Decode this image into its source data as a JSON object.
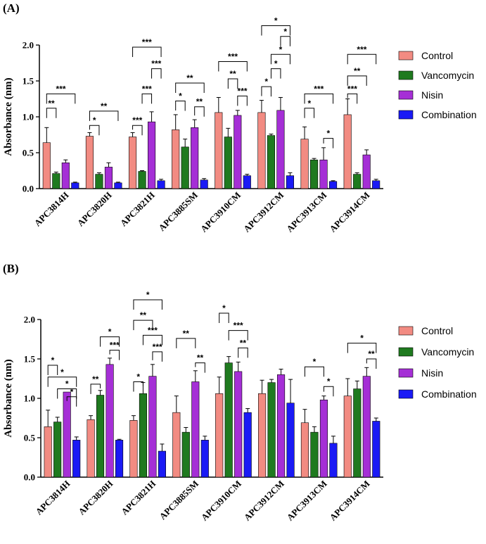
{
  "panels_text": {
    "a": "(A)",
    "b": "(B)"
  },
  "colors": {
    "Control": "#f28b82",
    "Vancomycin": "#1f7a1f",
    "Nisin": "#a52fd6",
    "Combination": "#1a1af5"
  },
  "chart_data": [
    {
      "type": "bar",
      "panel": "(A)",
      "categories": [
        "APC3814H",
        "APC3820H",
        "APC3821H",
        "APC3885SM",
        "APC3910CM",
        "APC3912CM",
        "APC3913CM",
        "APC3914CM"
      ],
      "ylabel": "Absorbance (nm)",
      "ylim": [
        0,
        2.0
      ],
      "yticks": [
        "0.0",
        "0.5",
        "1.0",
        "1.5",
        "2.0"
      ],
      "legend_placement": "right",
      "series": [
        {
          "name": "Control",
          "values": [
            0.64,
            0.73,
            0.72,
            0.82,
            1.06,
            1.06,
            0.69,
            1.03
          ],
          "errors": [
            0.21,
            0.05,
            0.06,
            0.21,
            0.21,
            0.17,
            0.17,
            0.22
          ]
        },
        {
          "name": "Vancomycin",
          "values": [
            0.21,
            0.2,
            0.24,
            0.58,
            0.72,
            0.74,
            0.4,
            0.2
          ],
          "errors": [
            0.02,
            0.02,
            0.01,
            0.11,
            0.12,
            0.02,
            0.02,
            0.02
          ]
        },
        {
          "name": "Nisin",
          "values": [
            0.36,
            0.3,
            0.93,
            0.85,
            1.02,
            1.09,
            0.4,
            0.47
          ],
          "errors": [
            0.04,
            0.06,
            0.14,
            0.11,
            0.07,
            0.18,
            0.17,
            0.07
          ]
        },
        {
          "name": "Combination",
          "values": [
            0.08,
            0.08,
            0.11,
            0.12,
            0.18,
            0.18,
            0.1,
            0.11
          ],
          "errors": [
            0.01,
            0.01,
            0.02,
            0.02,
            0.02,
            0.04,
            0.01,
            0.02
          ]
        }
      ],
      "significance": [
        {
          "group": 0,
          "from": 0,
          "to": 1,
          "top": 1.12,
          "label": "**"
        },
        {
          "group": 0,
          "from": 0,
          "to": 3,
          "top": 1.32,
          "label": "***"
        },
        {
          "group": 1,
          "from": 0,
          "to": 1,
          "top": 0.88,
          "label": "*"
        },
        {
          "group": 1,
          "from": 0,
          "to": 3,
          "top": 1.08,
          "label": "**"
        },
        {
          "group": 2,
          "from": 0,
          "to": 1,
          "top": 0.88,
          "label": "***"
        },
        {
          "group": 2,
          "from": 0,
          "to": 3,
          "top": 1.97,
          "label": "***"
        },
        {
          "group": 2,
          "from": 1,
          "to": 2,
          "top": 1.32,
          "label": "***"
        },
        {
          "group": 2,
          "from": 2,
          "to": 3,
          "top": 1.67,
          "label": "***"
        },
        {
          "group": 3,
          "from": 0,
          "to": 1,
          "top": 1.22,
          "label": "*"
        },
        {
          "group": 3,
          "from": 0,
          "to": 3,
          "top": 1.47,
          "label": "**"
        },
        {
          "group": 3,
          "from": 2,
          "to": 3,
          "top": 1.14,
          "label": "**"
        },
        {
          "group": 4,
          "from": 0,
          "to": 3,
          "top": 1.77,
          "label": "***"
        },
        {
          "group": 4,
          "from": 1,
          "to": 2,
          "top": 1.53,
          "label": "**"
        },
        {
          "group": 4,
          "from": 2,
          "to": 3,
          "top": 1.29,
          "label": "***"
        },
        {
          "group": 5,
          "from": 0,
          "to": 1,
          "top": 1.42,
          "label": "*"
        },
        {
          "group": 5,
          "from": 0,
          "to": 3,
          "top": 2.27,
          "label": "*"
        },
        {
          "group": 5,
          "from": 1,
          "to": 2,
          "top": 1.67,
          "label": "*"
        },
        {
          "group": 5,
          "from": 1,
          "to": 3,
          "top": 1.87,
          "label": "*"
        },
        {
          "group": 5,
          "from": 2,
          "to": 3,
          "top": 2.12,
          "label": "*"
        },
        {
          "group": 6,
          "from": 0,
          "to": 1,
          "top": 1.12,
          "label": "*"
        },
        {
          "group": 6,
          "from": 0,
          "to": 3,
          "top": 1.32,
          "label": "***"
        },
        {
          "group": 6,
          "from": 2,
          "to": 3,
          "top": 0.7,
          "label": "*"
        },
        {
          "group": 7,
          "from": 0,
          "to": 1,
          "top": 1.32,
          "label": "***"
        },
        {
          "group": 7,
          "from": 0,
          "to": 2,
          "top": 1.57,
          "label": "**"
        },
        {
          "group": 7,
          "from": 0,
          "to": 3,
          "top": 1.87,
          "label": "***"
        }
      ]
    },
    {
      "type": "bar",
      "panel": "(B)",
      "categories": [
        "APC3814H",
        "APC3820H",
        "APC3821H",
        "APC3885SM",
        "APC3910CM",
        "APC3912CM",
        "APC3913CM",
        "APC3914CM"
      ],
      "ylabel": "Absorbance (nm)",
      "ylim": [
        0,
        2.0
      ],
      "yticks": [
        "0.0",
        "0.5",
        "1.0",
        "1.5",
        "2.0"
      ],
      "legend_placement": "right",
      "series": [
        {
          "name": "Control",
          "values": [
            0.64,
            0.73,
            0.72,
            0.82,
            1.06,
            1.06,
            0.69,
            1.03
          ],
          "errors": [
            0.21,
            0.05,
            0.06,
            0.21,
            0.21,
            0.17,
            0.17,
            0.22
          ]
        },
        {
          "name": "Vancomycin",
          "values": [
            0.7,
            1.04,
            1.06,
            0.57,
            1.45,
            1.2,
            0.57,
            1.12
          ],
          "errors": [
            0.06,
            0.06,
            0.14,
            0.06,
            0.08,
            0.04,
            0.07,
            0.1
          ]
        },
        {
          "name": "Nisin",
          "values": [
            1.08,
            1.43,
            1.28,
            1.21,
            1.34,
            1.3,
            0.98,
            1.28
          ],
          "errors": [
            0.0,
            0.08,
            0.15,
            0.14,
            0.12,
            0.07,
            0.05,
            0.11
          ]
        },
        {
          "name": "Combination",
          "values": [
            0.47,
            0.47,
            0.33,
            0.47,
            0.82,
            0.94,
            0.43,
            0.71
          ],
          "errors": [
            0.04,
            0.01,
            0.09,
            0.05,
            0.05,
            0.3,
            0.09,
            0.04
          ]
        }
      ],
      "significance": [
        {
          "group": 0,
          "from": 0,
          "to": 1,
          "top": 1.42,
          "label": "*"
        },
        {
          "group": 0,
          "from": 0,
          "to": 3,
          "top": 1.27,
          "label": "*"
        },
        {
          "group": 0,
          "from": 1,
          "to": 3,
          "top": 1.12,
          "label": "*"
        },
        {
          "group": 0,
          "from": 2,
          "to": 3,
          "top": 1.02,
          "label": "*"
        },
        {
          "group": 1,
          "from": 0,
          "to": 1,
          "top": 1.18,
          "label": "**"
        },
        {
          "group": 1,
          "from": 1,
          "to": 3,
          "top": 1.78,
          "label": "*"
        },
        {
          "group": 1,
          "from": 2,
          "to": 3,
          "top": 1.61,
          "label": "***"
        },
        {
          "group": 2,
          "from": 0,
          "to": 1,
          "top": 1.21,
          "label": "*"
        },
        {
          "group": 2,
          "from": 0,
          "to": 2,
          "top": 1.99,
          "label": "**"
        },
        {
          "group": 2,
          "from": 0,
          "to": 3,
          "top": 2.25,
          "label": "*"
        },
        {
          "group": 2,
          "from": 1,
          "to": 3,
          "top": 1.8,
          "label": "***"
        },
        {
          "group": 2,
          "from": 2,
          "to": 3,
          "top": 1.59,
          "label": "***"
        },
        {
          "group": 3,
          "from": 0,
          "to": 2,
          "top": 1.76,
          "label": "**"
        },
        {
          "group": 3,
          "from": 2,
          "to": 3,
          "top": 1.45,
          "label": "**"
        },
        {
          "group": 4,
          "from": 0,
          "to": 1,
          "top": 2.08,
          "label": "*"
        },
        {
          "group": 4,
          "from": 1,
          "to": 3,
          "top": 1.86,
          "label": "***"
        },
        {
          "group": 4,
          "from": 2,
          "to": 3,
          "top": 1.64,
          "label": "**"
        },
        {
          "group": 6,
          "from": 0,
          "to": 2,
          "top": 1.4,
          "label": "*"
        },
        {
          "group": 6,
          "from": 2,
          "to": 3,
          "top": 1.15,
          "label": "*"
        },
        {
          "group": 7,
          "from": 0,
          "to": 3,
          "top": 1.7,
          "label": "*"
        },
        {
          "group": 7,
          "from": 2,
          "to": 3,
          "top": 1.5,
          "label": "**"
        }
      ]
    }
  ]
}
